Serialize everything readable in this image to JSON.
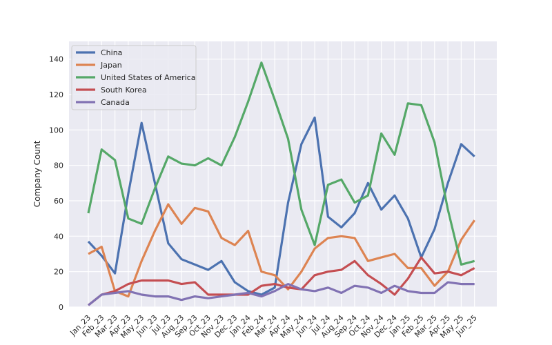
{
  "chart_data": {
    "type": "line",
    "ylabel": "Company Count",
    "xlabel": "",
    "ylim": [
      0,
      150
    ],
    "yticks": [
      0,
      20,
      40,
      60,
      80,
      100,
      120,
      140
    ],
    "grid": true,
    "legend_position": "top-left",
    "categories": [
      "Jan_23",
      "Feb_23",
      "Mar_23",
      "Apr_23",
      "May_23",
      "Jun_23",
      "Jul_23",
      "Aug_23",
      "Sep_23",
      "Oct_23",
      "Nov_23",
      "Dec_23",
      "Jan_24",
      "Feb_24",
      "Mar_24",
      "Apr_24",
      "May_24",
      "Jun_24",
      "Jul_24",
      "Aug_24",
      "Sep_24",
      "Oct_24",
      "Nov_24",
      "Dec_24",
      "Jan_25",
      "Feb_25",
      "Mar_25",
      "Apr_25",
      "May_25",
      "Jun_25"
    ],
    "series": [
      {
        "name": "China",
        "color": "#4c72b0",
        "values": [
          37,
          29,
          19,
          64,
          104,
          70,
          36,
          27,
          24,
          21,
          26,
          14,
          9,
          7,
          11,
          59,
          92,
          107,
          51,
          45,
          53,
          70,
          55,
          63,
          50,
          28,
          44,
          70,
          92,
          85
        ]
      },
      {
        "name": "Japan",
        "color": "#dd8452",
        "values": [
          30,
          34,
          9,
          6,
          26,
          43,
          58,
          47,
          56,
          54,
          39,
          35,
          43,
          20,
          18,
          10,
          20,
          33,
          39,
          40,
          39,
          26,
          28,
          30,
          22,
          22,
          12,
          20,
          38,
          49
        ]
      },
      {
        "name": "United States of America",
        "color": "#55a868",
        "values": [
          53,
          89,
          83,
          50,
          47,
          67,
          85,
          81,
          80,
          84,
          80,
          96,
          116,
          138,
          117,
          95,
          55,
          35,
          69,
          72,
          59,
          63,
          98,
          86,
          115,
          114,
          93,
          55,
          24,
          26
        ]
      },
      {
        "name": "South Korea",
        "color": "#c44e52",
        "values": [
          1,
          7,
          9,
          13,
          15,
          15,
          15,
          13,
          14,
          7,
          7,
          7,
          7,
          12,
          13,
          11,
          10,
          18,
          20,
          21,
          26,
          18,
          13,
          7,
          16,
          28,
          19,
          20,
          18,
          22
        ]
      },
      {
        "name": "Canada",
        "color": "#8172b3",
        "values": [
          1,
          7,
          8,
          9,
          7,
          6,
          6,
          4,
          6,
          5,
          6,
          7,
          8,
          6,
          9,
          13,
          10,
          9,
          11,
          8,
          12,
          11,
          8,
          12,
          9,
          8,
          8,
          14,
          13,
          13
        ]
      }
    ]
  }
}
